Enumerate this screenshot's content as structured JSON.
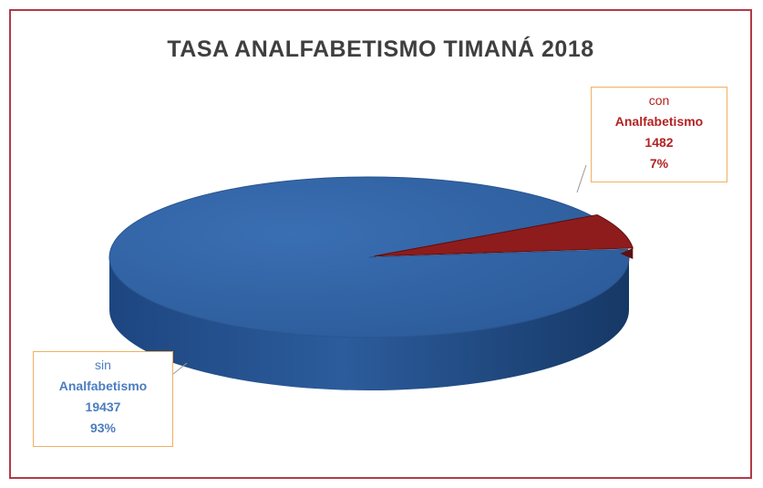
{
  "chart_data": {
    "type": "pie",
    "title": "TASA ANALFABETISMO TIMANÁ 2018",
    "slices": [
      {
        "label_top": "sin",
        "label_bottom": "Analfabetismo",
        "value": 19437,
        "percent_text": "93%",
        "percent": 93,
        "color": "#2e5fa0"
      },
      {
        "label_top": "con",
        "label_bottom": "Analfabetismo",
        "value": 1482,
        "percent_text": "7%",
        "percent": 7,
        "color": "#8f1c1c"
      }
    ]
  },
  "colors": {
    "frame": "#b23a48",
    "label_border": "#f0b060"
  }
}
